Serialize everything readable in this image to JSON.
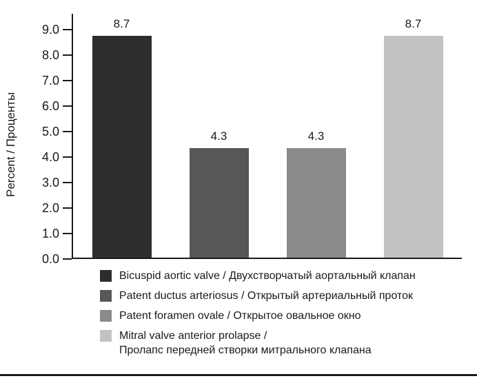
{
  "chart_data": {
    "type": "bar",
    "title": "",
    "xlabel": "",
    "ylabel": "Percent / Проценты",
    "ylim": [
      0,
      9
    ],
    "grid": false,
    "legend_position": "bottom",
    "yticks": [
      "9.0",
      "8.0",
      "7.0",
      "6.0",
      "5.0",
      "4.0",
      "3.0",
      "2.0",
      "1.0",
      "0.0"
    ],
    "categories": [
      "Bicuspid aortic valve / Двухстворчатый аортальный клапан",
      "Patent ductus arteriosus / Открытый артериальный проток",
      "Patent foramen ovale / Открытое овальное окно",
      "Mitral valve anterior prolapse / Пролапс передней створки митрального клапана"
    ],
    "values": [
      8.7,
      4.3,
      4.3,
      8.7
    ],
    "value_labels": [
      "8.7",
      "4.3",
      "4.3",
      "8.7"
    ],
    "bar_colors": [
      "#2d2d2d",
      "#575757",
      "#8a8a8a",
      "#c2c2c2"
    ],
    "axis_color": "#1a1a1a",
    "legend": [
      {
        "label": "Bicuspid aortic valve / Двухстворчатый аортальный клапан",
        "color": "#2d2d2d"
      },
      {
        "label": "Patent ductus arteriosus / Открытый артериальный проток",
        "color": "#575757"
      },
      {
        "label": "Patent foramen ovale / Открытое овальное окно",
        "color": "#8a8a8a"
      },
      {
        "label": "Mitral valve anterior prolapse /\nПролапс передней створки митрального клапана",
        "color": "#c2c2c2"
      }
    ]
  }
}
